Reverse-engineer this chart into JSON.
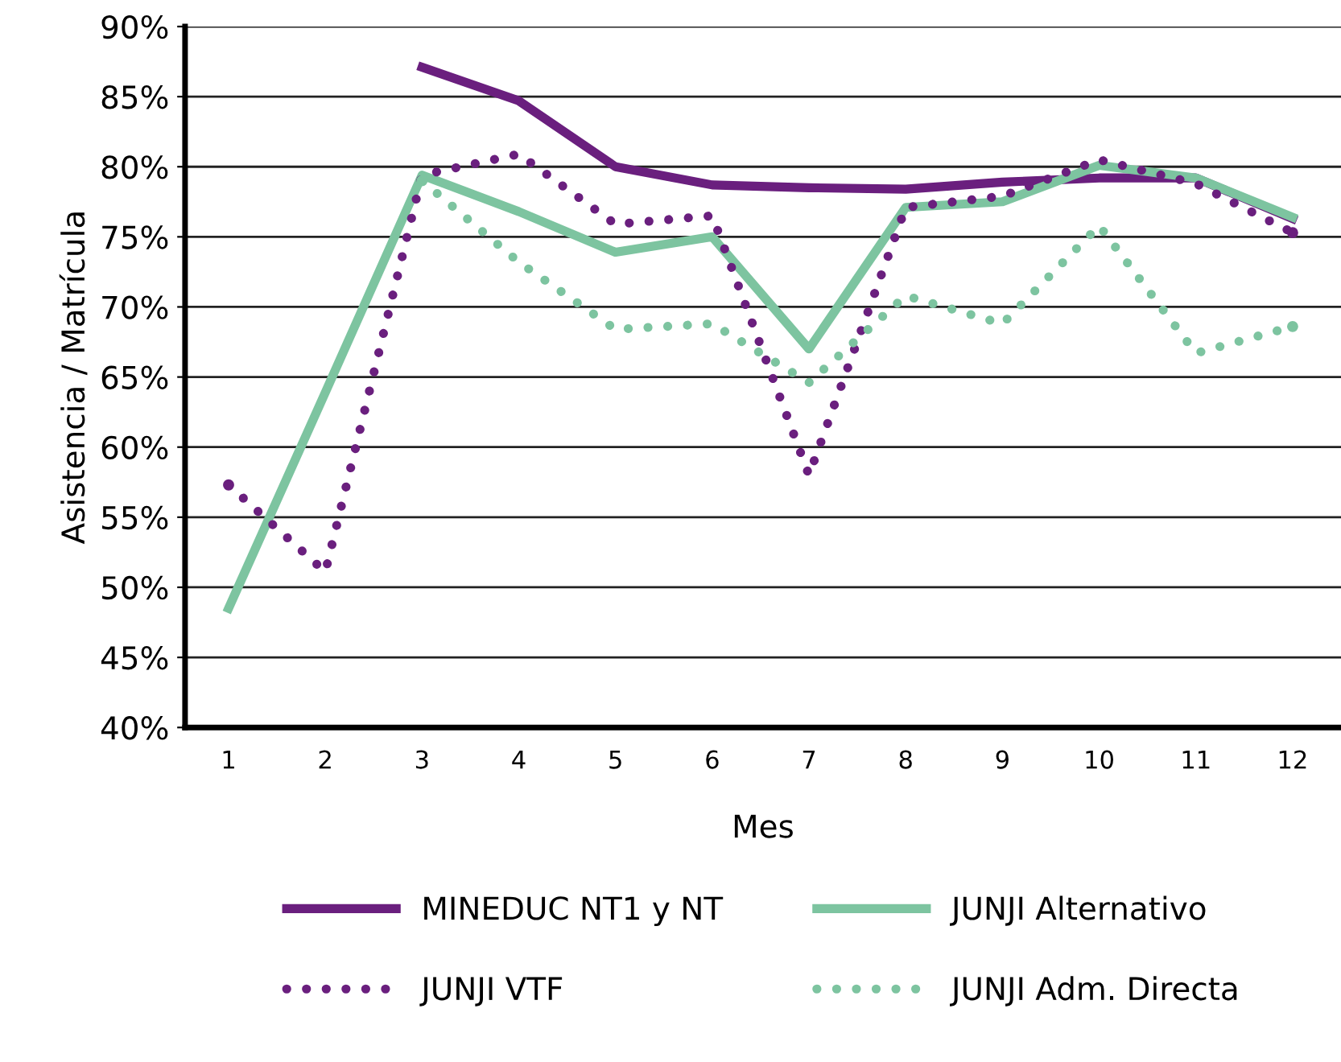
{
  "chart_data": {
    "type": "line",
    "xlabel": "Mes",
    "ylabel": "Asistencia / Matrícula",
    "categories": [
      "1",
      "2",
      "3",
      "4",
      "5",
      "6",
      "7",
      "8",
      "9",
      "10",
      "11",
      "12"
    ],
    "series": [
      {
        "name": "MINEDUC NT1 y NT",
        "color": "#6a1f7e",
        "line_style": "solid",
        "values": [
          null,
          null,
          87.1,
          84.7,
          80.0,
          78.7,
          78.5,
          78.4,
          78.9,
          79.2,
          79.2,
          76.3
        ]
      },
      {
        "name": "JUNJI Alternativo",
        "color": "#7dc4a0",
        "line_style": "solid",
        "values": [
          48.5,
          63.9,
          79.4,
          76.8,
          73.9,
          75.0,
          67.0,
          77.1,
          77.5,
          80.1,
          79.2,
          76.4
        ]
      },
      {
        "name": "JUNJI VTF",
        "color": "#6a1f7e",
        "line_style": "dotted",
        "values": [
          57.3,
          51.1,
          79.4,
          80.9,
          75.9,
          76.5,
          58.0,
          77.1,
          77.9,
          80.5,
          78.8,
          75.3
        ]
      },
      {
        "name": "JUNJI Adm. Directa",
        "color": "#7dc4a0",
        "line_style": "dotted",
        "values": [
          null,
          null,
          79.0,
          73.2,
          68.4,
          68.8,
          64.6,
          70.8,
          68.8,
          75.8,
          66.7,
          68.6
        ]
      }
    ],
    "ylim": [
      40,
      90
    ],
    "yticks": [
      {
        "value": 40,
        "label": "40%"
      },
      {
        "value": 45,
        "label": "45%"
      },
      {
        "value": 50,
        "label": "50%"
      },
      {
        "value": 55,
        "label": "55%"
      },
      {
        "value": 60,
        "label": "60%"
      },
      {
        "value": 65,
        "label": "65%"
      },
      {
        "value": 70,
        "label": "70%"
      },
      {
        "value": 75,
        "label": "75%"
      },
      {
        "value": 80,
        "label": "80%"
      },
      {
        "value": 85,
        "label": "85%"
      },
      {
        "value": 90,
        "label": "90%"
      }
    ],
    "grid": "y",
    "legend": "bottom",
    "marker": "none"
  }
}
